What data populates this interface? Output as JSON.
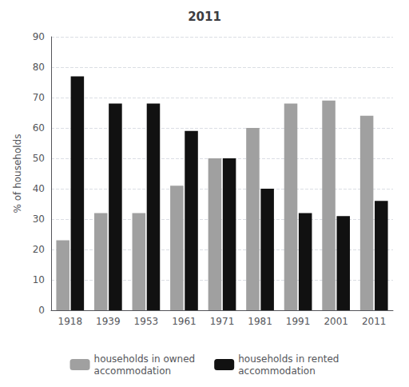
{
  "chart_data": {
    "type": "bar",
    "title": "2011",
    "categories": [
      "1918",
      "1939",
      "1953",
      "1961",
      "1971",
      "1981",
      "1991",
      "2001",
      "2011"
    ],
    "series": [
      {
        "name": "households in owned\naccommodation",
        "color": "#a0a0a0",
        "values": [
          23,
          32,
          32,
          41,
          50,
          60,
          68,
          69,
          64
        ]
      },
      {
        "name": "households in rented\naccommodation",
        "color": "#111111",
        "values": [
          77,
          68,
          68,
          59,
          50,
          40,
          32,
          31,
          36
        ]
      }
    ],
    "ylabel": "% of households",
    "ylim": [
      0,
      90
    ],
    "yticks": [
      0,
      10,
      20,
      30,
      40,
      50,
      60,
      70,
      80,
      90
    ],
    "grid": true,
    "legend": "bottom"
  }
}
